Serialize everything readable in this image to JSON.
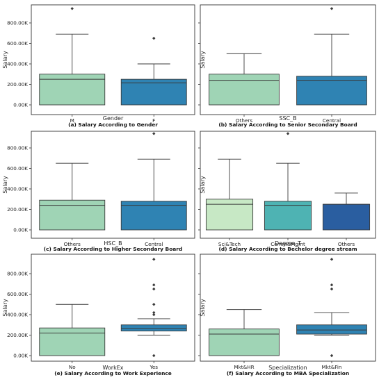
{
  "chart_data": [
    {
      "type": "box",
      "caption": "(a) Salary According to Gender",
      "xlabel": "Gender",
      "ylabel": "Salary",
      "yticks": [
        "0.00K",
        "200.00K",
        "400.00K",
        "600.00K",
        "800.00K"
      ],
      "categories": [
        "M",
        "F"
      ],
      "colors": [
        "#9fd4b5",
        "#2f83b3"
      ],
      "boxes": [
        {
          "whislo": 0,
          "q1": 0,
          "med": 250000,
          "q3": 300000,
          "whishi": 690000,
          "fliers": [
            940000
          ]
        },
        {
          "whislo": 0,
          "q1": 0,
          "med": 215000,
          "q3": 250000,
          "whishi": 400000,
          "fliers": [
            650000
          ]
        }
      ]
    },
    {
      "type": "box",
      "caption": "(b) Salary According to Senior Secondary Board",
      "xlabel": "SSC_B",
      "ylabel": "Salary",
      "yticks": [],
      "categories": [
        "Others",
        "Central"
      ],
      "colors": [
        "#9fd4b5",
        "#2f83b3"
      ],
      "boxes": [
        {
          "whislo": 0,
          "q1": 0,
          "med": 240000,
          "q3": 300000,
          "whishi": 500000,
          "fliers": []
        },
        {
          "whislo": 0,
          "q1": 0,
          "med": 240000,
          "q3": 280000,
          "whishi": 690000,
          "fliers": [
            940000
          ]
        }
      ]
    },
    {
      "type": "box",
      "caption": "(c) Salary According to Higher Secondary Board",
      "xlabel": "HSC_B",
      "ylabel": "Salary",
      "yticks": [
        "0.00K",
        "200.00K",
        "400.00K",
        "600.00K",
        "800.00K"
      ],
      "categories": [
        "Others",
        "Central"
      ],
      "colors": [
        "#9fd4b5",
        "#2f83b3"
      ],
      "boxes": [
        {
          "whislo": 0,
          "q1": 0,
          "med": 240000,
          "q3": 290000,
          "whishi": 650000,
          "fliers": []
        },
        {
          "whislo": 0,
          "q1": 0,
          "med": 240000,
          "q3": 280000,
          "whishi": 690000,
          "fliers": [
            940000
          ]
        }
      ]
    },
    {
      "type": "box",
      "caption": "(d) Salary According to Bechelor degree stream",
      "xlabel": "Degree_T",
      "ylabel": "Salary",
      "yticks": [],
      "categories": [
        "Sci&Tech",
        "Comm&Mgmt",
        "Others"
      ],
      "colors": [
        "#c7e8c5",
        "#4eb3b3",
        "#2a5ea0"
      ],
      "boxes": [
        {
          "whislo": 0,
          "q1": 0,
          "med": 250000,
          "q3": 300000,
          "whishi": 690000,
          "fliers": []
        },
        {
          "whislo": 0,
          "q1": 0,
          "med": 240000,
          "q3": 280000,
          "whishi": 650000,
          "fliers": [
            940000
          ]
        },
        {
          "whislo": 0,
          "q1": 0,
          "med": 250000,
          "q3": 250000,
          "whishi": 360000,
          "fliers": []
        }
      ]
    },
    {
      "type": "box",
      "caption": "(e) Salary According to Work Experience",
      "xlabel": "WorkEx",
      "ylabel": "Salary",
      "yticks": [
        "0.00K",
        "200.00K",
        "400.00K",
        "600.00K",
        "800.00K"
      ],
      "categories": [
        "No",
        "Yes"
      ],
      "colors": [
        "#9fd4b5",
        "#2f83b3"
      ],
      "boxes": [
        {
          "whislo": 0,
          "q1": 0,
          "med": 220000,
          "q3": 270000,
          "whishi": 500000,
          "fliers": []
        },
        {
          "whislo": 200000,
          "q1": 240000,
          "med": 265000,
          "q3": 300000,
          "whishi": 360000,
          "fliers": [
            0,
            400000,
            420000,
            500000,
            650000,
            690000,
            940000
          ]
        }
      ]
    },
    {
      "type": "box",
      "caption": "(f) Salary According to MBA Specialization",
      "xlabel": "Specialization",
      "ylabel": "Salary",
      "yticks": [],
      "categories": [
        "Mkt&HR",
        "Mkt&Fin"
      ],
      "colors": [
        "#9fd4b5",
        "#2f83b3"
      ],
      "boxes": [
        {
          "whislo": 0,
          "q1": 0,
          "med": 210000,
          "q3": 260000,
          "whishi": 450000,
          "fliers": []
        },
        {
          "whislo": 200000,
          "q1": 210000,
          "med": 250000,
          "q3": 300000,
          "whishi": 420000,
          "fliers": [
            0,
            650000,
            690000,
            940000
          ]
        }
      ]
    }
  ]
}
